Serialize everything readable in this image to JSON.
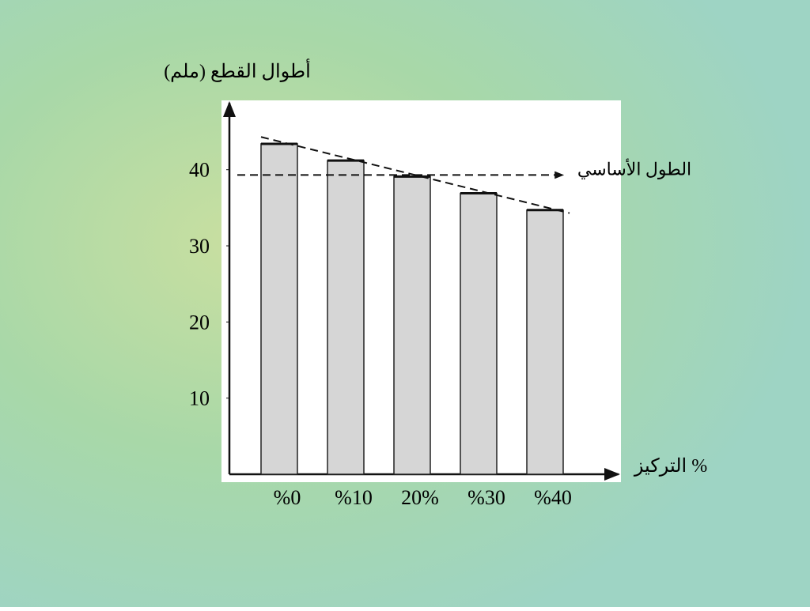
{
  "chart_data": {
    "type": "bar",
    "y_axis_label": "أطوال القطع (ملم)",
    "x_axis_label": "التركيز %",
    "categories": [
      "%0",
      "%10",
      "20%",
      "%30",
      "%40"
    ],
    "values": [
      43.4,
      41.2,
      39.1,
      36.9,
      34.7
    ],
    "color": "#d6d6d6",
    "ylim": [
      0,
      49
    ],
    "yticks": [
      10,
      20,
      30,
      40
    ],
    "reference_line": {
      "label": "الطول الأساسي",
      "value": 39.3
    },
    "trend_line": [
      44.3,
      34.3
    ]
  }
}
